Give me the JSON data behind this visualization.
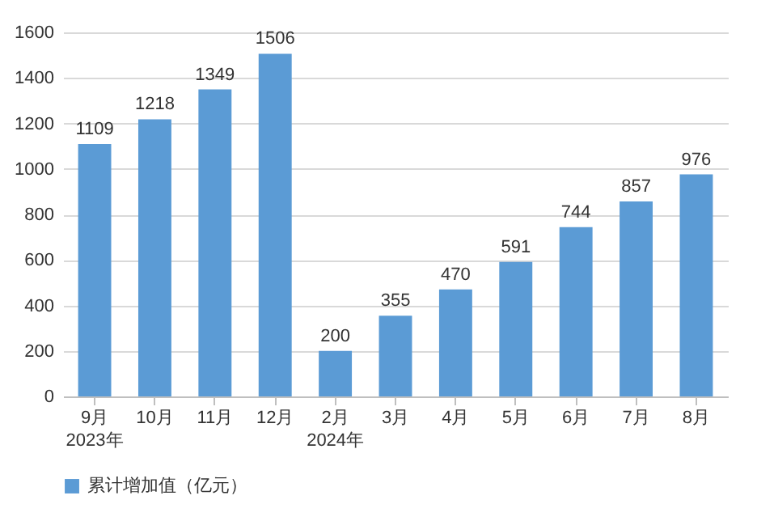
{
  "chart_data": {
    "type": "bar",
    "categories": [
      "9月\n2023年",
      "10月",
      "11月",
      "12月",
      "2月\n2024年",
      "3月",
      "4月",
      "5月",
      "6月",
      "7月",
      "8月"
    ],
    "series": [
      {
        "name": "累计增加值（亿元）",
        "color": "#5b9bd5",
        "values": [
          1109,
          1218,
          1349,
          1506,
          200,
          355,
          470,
          591,
          744,
          857,
          976
        ]
      }
    ],
    "ylim": [
      0,
      1600
    ],
    "yticks": [
      0,
      200,
      400,
      600,
      800,
      1000,
      1200,
      1400,
      1600
    ],
    "grid": "y",
    "legend": "bottom",
    "data_labels": true
  }
}
